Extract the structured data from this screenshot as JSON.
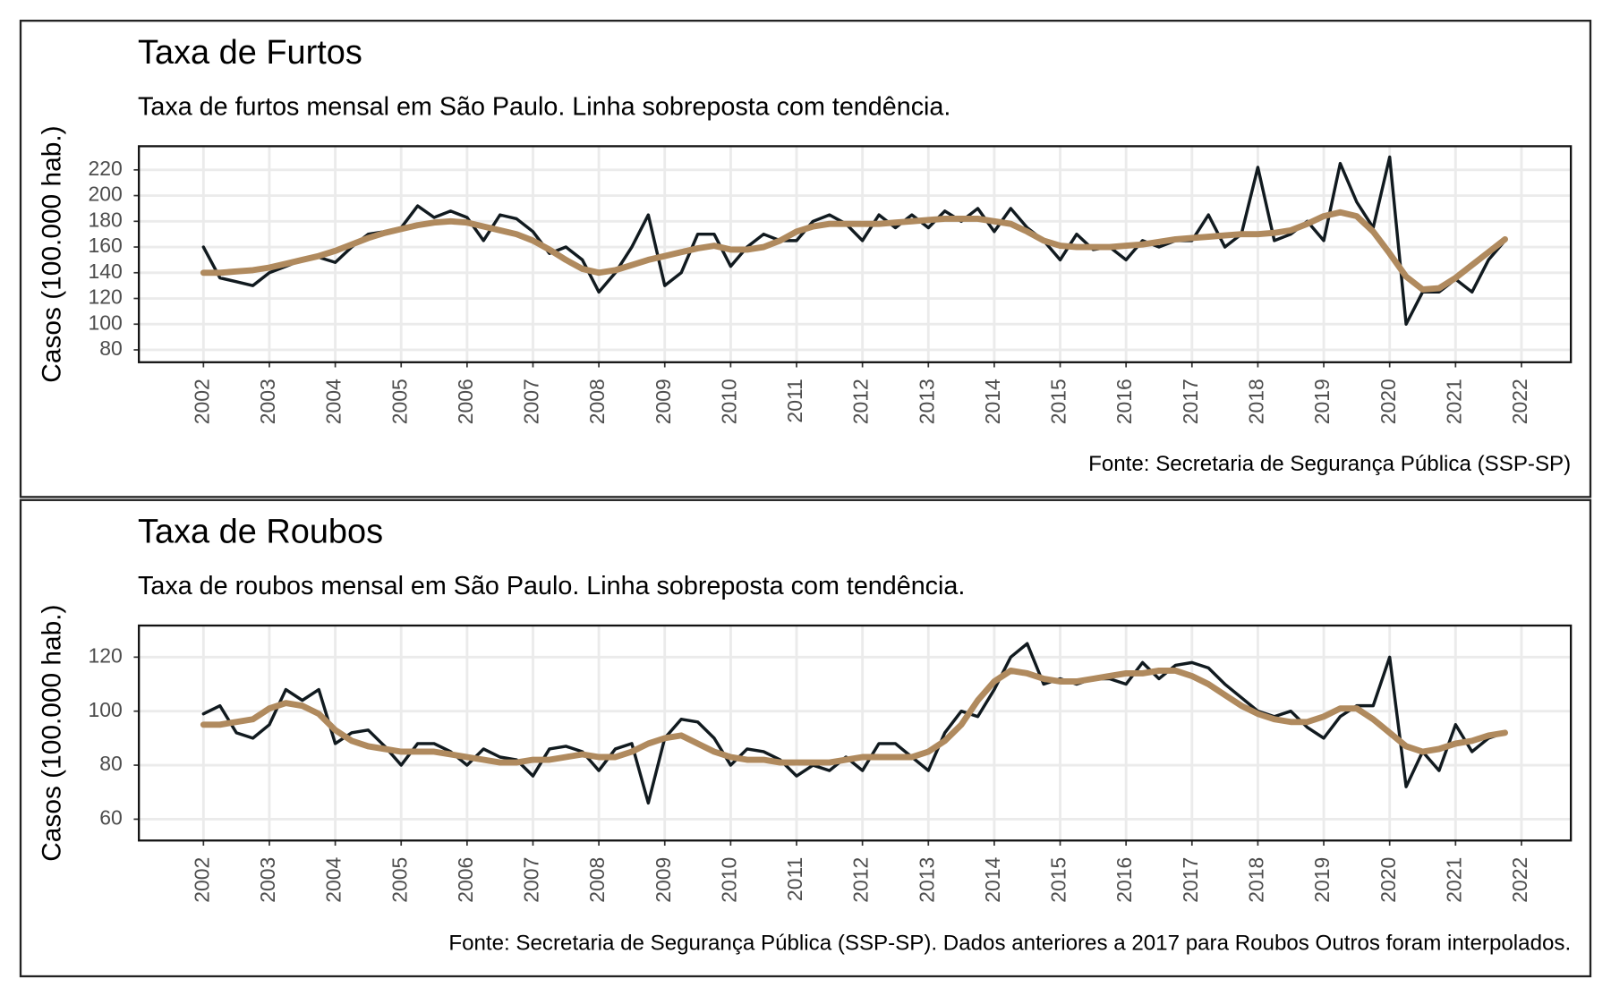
{
  "chart_data": [
    {
      "type": "line",
      "title": "Taxa de Furtos",
      "subtitle": "Taxa de furtos mensal em São Paulo. Linha sobreposta com tendência.",
      "caption": "Fonte: Secretaria de Segurança Pública (SSP-SP)",
      "ylabel": "Casos (100.000 hab.)",
      "x": [
        2002,
        2002.25,
        2002.5,
        2002.75,
        2003,
        2003.25,
        2003.5,
        2003.75,
        2004,
        2004.25,
        2004.5,
        2004.75,
        2005,
        2005.25,
        2005.5,
        2005.75,
        2006,
        2006.25,
        2006.5,
        2006.75,
        2007,
        2007.25,
        2007.5,
        2007.75,
        2008,
        2008.25,
        2008.5,
        2008.75,
        2009,
        2009.25,
        2009.5,
        2009.75,
        2010,
        2010.25,
        2010.5,
        2010.75,
        2011,
        2011.25,
        2011.5,
        2011.75,
        2012,
        2012.25,
        2012.5,
        2012.75,
        2013,
        2013.25,
        2013.5,
        2013.75,
        2014,
        2014.25,
        2014.5,
        2014.75,
        2015,
        2015.25,
        2015.5,
        2015.75,
        2016,
        2016.25,
        2016.5,
        2016.75,
        2017,
        2017.25,
        2017.5,
        2017.75,
        2018,
        2018.25,
        2018.5,
        2018.75,
        2019,
        2019.25,
        2019.5,
        2019.75,
        2020,
        2020.25,
        2020.5,
        2020.75,
        2021,
        2021.25,
        2021.5,
        2021.75
      ],
      "series": [
        {
          "color": "#111a1f",
          "values": [
            160,
            136,
            133,
            130,
            140,
            145,
            150,
            152,
            148,
            160,
            170,
            172,
            175,
            192,
            183,
            188,
            183,
            165,
            185,
            182,
            172,
            155,
            160,
            150,
            125,
            140,
            160,
            185,
            130,
            140,
            170,
            170,
            145,
            160,
            170,
            165,
            165,
            180,
            185,
            178,
            165,
            185,
            175,
            185,
            175,
            188,
            180,
            190,
            172,
            190,
            175,
            165,
            150,
            170,
            158,
            160,
            150,
            165,
            160,
            165,
            165,
            185,
            160,
            170,
            222,
            165,
            170,
            180,
            165,
            225,
            195,
            175,
            230,
            100,
            125,
            125,
            135,
            125,
            150,
            165
          ]
        },
        {
          "color": "#b08a5e",
          "values": [
            140,
            140,
            141,
            142,
            144,
            147,
            150,
            153,
            157,
            162,
            167,
            171,
            174,
            177,
            179,
            180,
            179,
            176,
            173,
            170,
            165,
            158,
            150,
            143,
            140,
            142,
            146,
            150,
            153,
            156,
            159,
            161,
            158,
            158,
            160,
            165,
            172,
            176,
            178,
            178,
            178,
            178,
            179,
            180,
            181,
            182,
            182,
            182,
            180,
            178,
            172,
            165,
            161,
            160,
            160,
            160,
            161,
            162,
            164,
            166,
            167,
            168,
            169,
            170,
            170,
            171,
            173,
            178,
            184,
            187,
            184,
            172,
            155,
            137,
            127,
            128,
            136,
            146,
            156,
            166
          ]
        }
      ],
      "xlim": [
        2001.02,
        2022.75
      ],
      "ylim": [
        70.4,
        238.4
      ],
      "xticks": [
        2002,
        2003,
        2004,
        2005,
        2006,
        2007,
        2008,
        2009,
        2010,
        2011,
        2012,
        2013,
        2014,
        2015,
        2016,
        2017,
        2018,
        2019,
        2020,
        2021,
        2022
      ],
      "yticks": [
        80,
        100,
        120,
        140,
        160,
        180,
        200,
        220
      ],
      "grid": true
    },
    {
      "type": "line",
      "title": "Taxa de Roubos",
      "subtitle": "Taxa de roubos mensal em São Paulo. Linha sobreposta com tendência.",
      "caption": "Fonte: Secretaria de Segurança Pública (SSP-SP). Dados anteriores a 2017 para Roubos Outros foram interpolados.",
      "ylabel": "Casos (100.000 hab.)",
      "x": [
        2002,
        2002.25,
        2002.5,
        2002.75,
        2003,
        2003.25,
        2003.5,
        2003.75,
        2004,
        2004.25,
        2004.5,
        2004.75,
        2005,
        2005.25,
        2005.5,
        2005.75,
        2006,
        2006.25,
        2006.5,
        2006.75,
        2007,
        2007.25,
        2007.5,
        2007.75,
        2008,
        2008.25,
        2008.5,
        2008.75,
        2009,
        2009.25,
        2009.5,
        2009.75,
        2010,
        2010.25,
        2010.5,
        2010.75,
        2011,
        2011.25,
        2011.5,
        2011.75,
        2012,
        2012.25,
        2012.5,
        2012.75,
        2013,
        2013.25,
        2013.5,
        2013.75,
        2014,
        2014.25,
        2014.5,
        2014.75,
        2015,
        2015.25,
        2015.5,
        2015.75,
        2016,
        2016.25,
        2016.5,
        2016.75,
        2017,
        2017.25,
        2017.5,
        2017.75,
        2018,
        2018.25,
        2018.5,
        2018.75,
        2019,
        2019.25,
        2019.5,
        2019.75,
        2020,
        2020.25,
        2020.5,
        2020.75,
        2021,
        2021.25,
        2021.5,
        2021.75
      ],
      "series": [
        {
          "color": "#111a1f",
          "values": [
            99,
            102,
            92,
            90,
            95,
            108,
            104,
            108,
            88,
            92,
            93,
            87,
            80,
            88,
            88,
            85,
            80,
            86,
            83,
            82,
            76,
            86,
            87,
            85,
            78,
            86,
            88,
            66,
            90,
            97,
            96,
            90,
            80,
            86,
            85,
            82,
            76,
            80,
            78,
            83,
            78,
            88,
            88,
            83,
            78,
            92,
            100,
            98,
            108,
            120,
            125,
            110,
            112,
            110,
            112,
            112,
            110,
            118,
            112,
            117,
            118,
            116,
            110,
            105,
            100,
            98,
            100,
            94,
            90,
            98,
            102,
            102,
            120,
            72,
            85,
            78,
            95,
            85,
            90,
            92
          ]
        },
        {
          "color": "#b08a5e",
          "values": [
            95,
            95,
            96,
            97,
            101,
            103,
            102,
            99,
            93,
            89,
            87,
            86,
            85,
            85,
            85,
            84,
            83,
            82,
            81,
            81,
            82,
            82,
            83,
            84,
            83,
            83,
            85,
            88,
            90,
            91,
            88,
            85,
            83,
            82,
            82,
            81,
            81,
            81,
            81,
            82,
            83,
            83,
            83,
            83,
            85,
            89,
            95,
            104,
            111,
            115,
            114,
            112,
            111,
            111,
            112,
            113,
            114,
            114,
            115,
            115,
            113,
            110,
            106,
            102,
            99,
            97,
            96,
            96,
            98,
            101,
            101,
            97,
            92,
            87,
            85,
            86,
            88,
            89,
            91,
            92
          ]
        }
      ],
      "xlim": [
        2001.02,
        2022.75
      ],
      "ylim": [
        52.1,
        131.7
      ],
      "xticks": [
        2002,
        2003,
        2004,
        2005,
        2006,
        2007,
        2008,
        2009,
        2010,
        2011,
        2012,
        2013,
        2014,
        2015,
        2016,
        2017,
        2018,
        2019,
        2020,
        2021,
        2022
      ],
      "yticks": [
        60,
        80,
        100,
        120
      ],
      "grid": true
    }
  ]
}
